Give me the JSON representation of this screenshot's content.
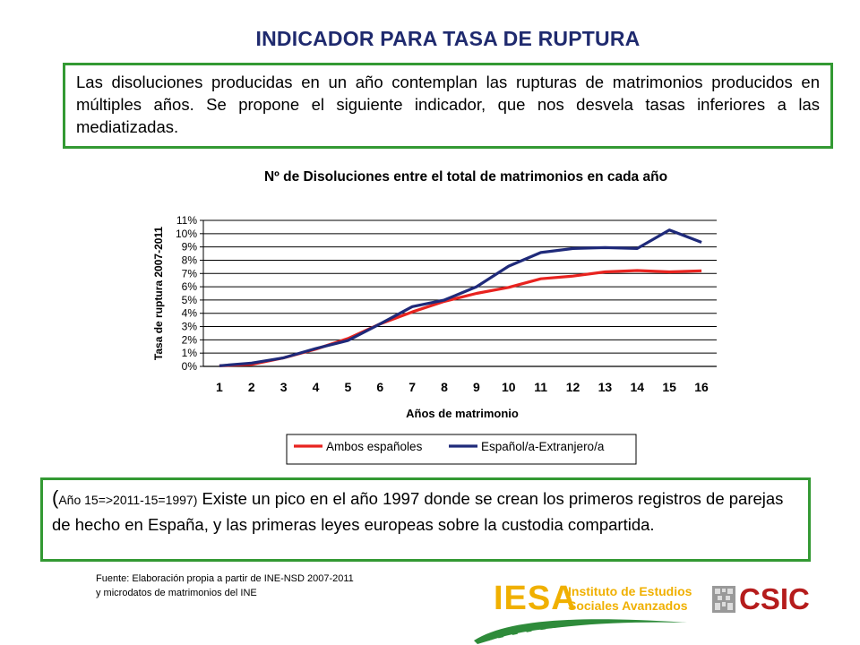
{
  "slide": {
    "title": "INDICADOR PARA TASA DE RUPTURA",
    "intro_text": "Las disoluciones producidas en un año contemplan las rupturas de matrimonios producidos en múltiples años. Se propone el siguiente indicador, que nos desvela tasas inferiores a las mediatizadas.",
    "note_paren_open": "(",
    "note_year_ref": "Año 15=>2011-15=1997)",
    "note_text": " Existe un pico en el año 1997 donde se crean los primeros registros de parejas de hecho en España, y las primeras leyes europeas sobre la custodia compartida.",
    "source_label": "Fuente",
    "source_line1": ": Elaboración propia a partir de INE-NSD  2007-2011",
    "source_line2": " y microdatos de matrimonios del INE"
  },
  "logos": {
    "iesa_word": "IESA",
    "iesa_line1": "Instituto de Estudios",
    "iesa_line2": "Sociales Avanzados",
    "csic_word": "CSIC",
    "iesa_color": "#f0b000",
    "csic_color": "#b51c1c"
  },
  "chart_data": {
    "type": "line",
    "title": "Nº de Disoluciones entre el total de matrimonios en cada año",
    "xlabel": "Años de matrimonio",
    "ylabel": "Tasa de ruptura 2007-2011",
    "x": [
      1,
      2,
      3,
      4,
      5,
      6,
      7,
      8,
      9,
      10,
      11,
      12,
      13,
      14,
      15,
      16
    ],
    "ylim": [
      0,
      0.11
    ],
    "y_ticks": [
      "0%",
      "1%",
      "2%",
      "3%",
      "4%",
      "5%",
      "6%",
      "7%",
      "8%",
      "9%",
      "10%",
      "11%"
    ],
    "grid": true,
    "legend_position": "bottom",
    "series": [
      {
        "name": "Ambos españoles",
        "color": "#e8231f",
        "values": [
          0.0005,
          0.0015,
          0.0065,
          0.013,
          0.021,
          0.032,
          0.041,
          0.049,
          0.055,
          0.0595,
          0.066,
          0.068,
          0.0712,
          0.0722,
          0.0712,
          0.072
        ]
      },
      {
        "name": "Español/a-Extranjero/a",
        "color": "#1f2a7a",
        "values": [
          0.0005,
          0.0025,
          0.0065,
          0.0135,
          0.0195,
          0.032,
          0.045,
          0.05,
          0.06,
          0.0755,
          0.0858,
          0.0888,
          0.0895,
          0.0888,
          0.1028,
          0.0935
        ]
      }
    ]
  }
}
